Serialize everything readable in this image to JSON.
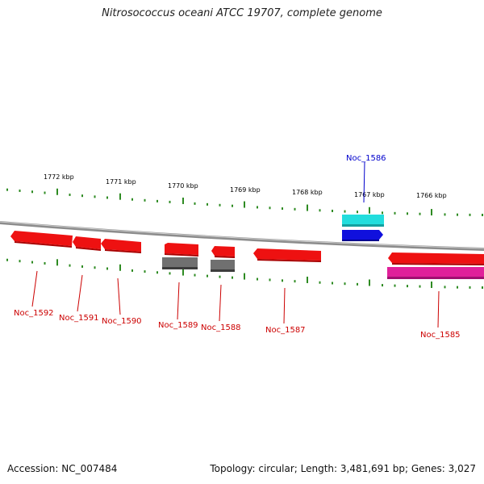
{
  "title": "Nitrosococcus oceani ATCC 19707, complete genome",
  "footer": {
    "accession": "Accession: NC_007484",
    "topology": "Topology: circular; Length: 3,481,691 bp; Genes: 3,027"
  },
  "scale_labels": [
    "1772 kbp",
    "1771 kbp",
    "1770 kbp",
    "1769 kbp",
    "1768 kbp",
    "1767 kbp",
    "1766 kbp"
  ],
  "colors": {
    "backbone": "#8c8c8c",
    "tick": "#2e8b22",
    "red_gene": "#ee1111",
    "gray_gene": "#707070",
    "cyan_gene": "#22dddd",
    "blue_gene": "#1010dd",
    "magenta_gene": "#e0209a",
    "red_label": "#cc0000",
    "blue_label": "#0000cc"
  },
  "genes": [
    {
      "name": "Noc_1592",
      "color": "red_label"
    },
    {
      "name": "Noc_1591",
      "color": "red_label"
    },
    {
      "name": "Noc_1590",
      "color": "red_label"
    },
    {
      "name": "Noc_1589",
      "color": "red_label"
    },
    {
      "name": "Noc_1588",
      "color": "red_label"
    },
    {
      "name": "Noc_1587",
      "color": "red_label"
    },
    {
      "name": "Noc_1586",
      "color": "blue_label"
    },
    {
      "name": "Noc_1585",
      "color": "red_label"
    }
  ]
}
